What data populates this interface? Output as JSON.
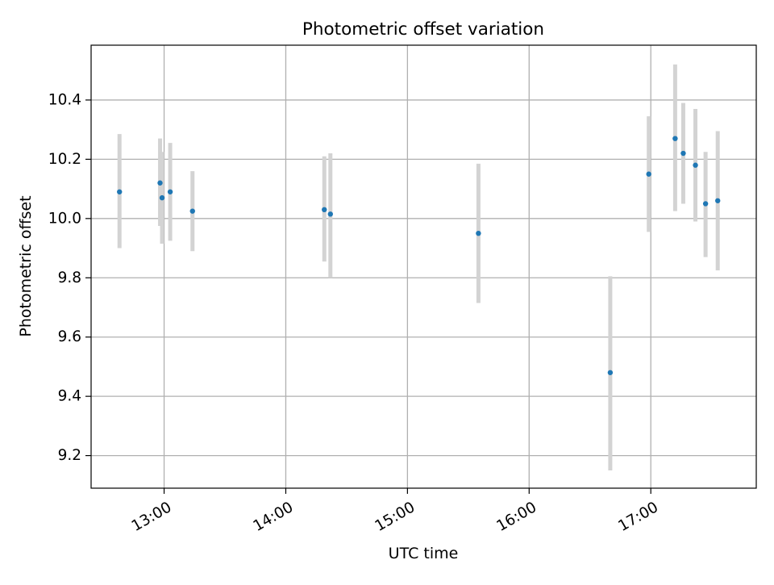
{
  "chart_data": {
    "type": "scatter",
    "title": "Photometric offset variation",
    "xlabel": "UTC time",
    "ylabel": "Photometric offset",
    "x_axis": {
      "kind": "time",
      "range": [
        "12:24",
        "17:52"
      ],
      "ticks": [
        "13:00",
        "14:00",
        "15:00",
        "16:00",
        "17:00"
      ]
    },
    "y_axis": {
      "range": [
        9.09,
        10.585
      ],
      "ticks": [
        9.2,
        9.4,
        9.6,
        9.8,
        10.0,
        10.2,
        10.4
      ],
      "tick_labels": [
        "9.2",
        "9.4",
        "9.6",
        "9.8",
        "10.0",
        "10.2",
        "10.4"
      ]
    },
    "grid": true,
    "marker_color": "#1f77b4",
    "errorbar_color": "#d3d3d3",
    "points": [
      {
        "time": "12:38",
        "y": 10.09,
        "ymin": 9.9,
        "ymax": 10.285
      },
      {
        "time": "12:58",
        "y": 10.12,
        "ymin": 9.975,
        "ymax": 10.27
      },
      {
        "time": "12:59",
        "y": 10.07,
        "ymin": 9.915,
        "ymax": 10.225
      },
      {
        "time": "13:03",
        "y": 10.09,
        "ymin": 9.925,
        "ymax": 10.255
      },
      {
        "time": "13:14",
        "y": 10.025,
        "ymin": 9.89,
        "ymax": 10.16
      },
      {
        "time": "14:19",
        "y": 10.03,
        "ymin": 9.855,
        "ymax": 10.21
      },
      {
        "time": "14:22",
        "y": 10.015,
        "ymin": 9.8,
        "ymax": 10.22
      },
      {
        "time": "15:35",
        "y": 9.95,
        "ymin": 9.715,
        "ymax": 10.185
      },
      {
        "time": "16:40",
        "y": 9.48,
        "ymin": 9.15,
        "ymax": 9.805
      },
      {
        "time": "16:59",
        "y": 10.15,
        "ymin": 9.955,
        "ymax": 10.345
      },
      {
        "time": "17:12",
        "y": 10.27,
        "ymin": 10.025,
        "ymax": 10.52
      },
      {
        "time": "17:16",
        "y": 10.22,
        "ymin": 10.05,
        "ymax": 10.39
      },
      {
        "time": "17:22",
        "y": 10.18,
        "ymin": 9.99,
        "ymax": 10.37
      },
      {
        "time": "17:27",
        "y": 10.05,
        "ymin": 9.87,
        "ymax": 10.225
      },
      {
        "time": "17:33",
        "y": 10.06,
        "ymin": 9.825,
        "ymax": 10.295
      }
    ]
  }
}
